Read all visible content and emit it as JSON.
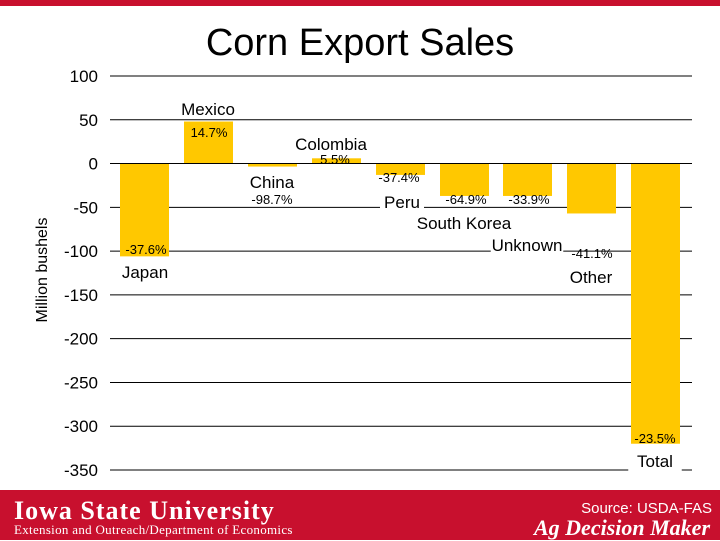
{
  "header": {
    "title": "Corn Export Sales"
  },
  "chart_data": {
    "type": "bar",
    "title": "Corn Export Sales",
    "ylabel": "Million bushels",
    "xlabel": "",
    "ylim": [
      -350,
      100
    ],
    "yticks": [
      100,
      50,
      0,
      -50,
      -100,
      -150,
      -200,
      -250,
      -300,
      -350
    ],
    "grid": true,
    "categories": [
      "Japan",
      "Mexico",
      "China",
      "Colombia",
      "Peru",
      "South Korea",
      "Unknown",
      "Other",
      "Total"
    ],
    "values": [
      -106,
      48,
      -3,
      6,
      -13,
      -37,
      -37,
      -57,
      -320
    ],
    "data_labels": [
      "-37.6%",
      "14.7%",
      "-98.7%",
      "5.5%",
      "-37.4%",
      "-64.9%",
      "-33.9%",
      "-41.1%",
      "-23.5%"
    ],
    "bar_color": "#ffc800"
  },
  "footer": {
    "university": "Iowa State University",
    "department": "Extension and Outreach/Department of Economics",
    "source": "Source: USDA-FAS",
    "brand": "Ag Decision Maker"
  },
  "colors": {
    "brand_red": "#c8102e",
    "bar": "#ffc800"
  }
}
